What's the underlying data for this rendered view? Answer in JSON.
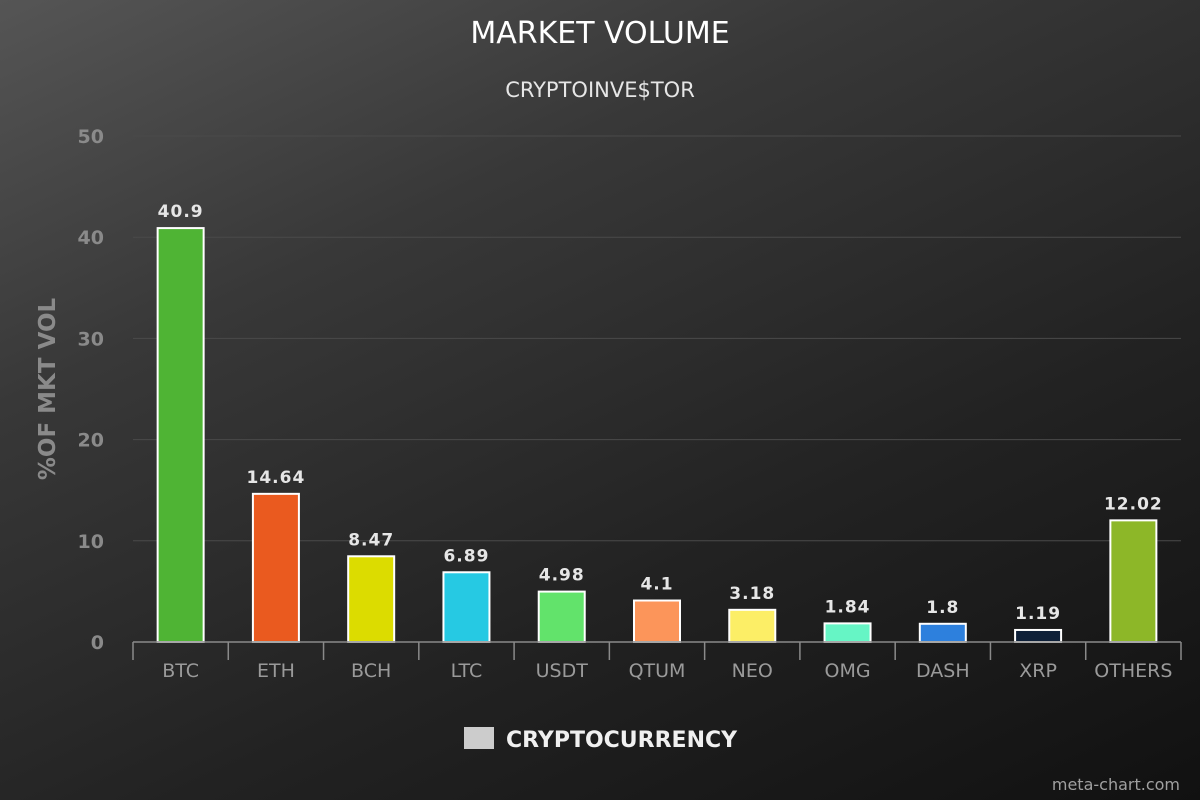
{
  "chart_data": {
    "type": "bar",
    "title": "MARKET VOLUME",
    "subtitle": "CRYPTOINVE$TOR",
    "xlabel": "",
    "ylabel": "%OF MKT VOL",
    "ylim": [
      0,
      50
    ],
    "yticks": [
      "0",
      "10",
      "20",
      "30",
      "40",
      "50"
    ],
    "grid": true,
    "legend_position": "bottom-center",
    "categories": [
      "BTC",
      "ETH",
      "BCH",
      "LTC",
      "USDT",
      "QTUM",
      "NEO",
      "OMG",
      "DASH",
      "XRP",
      "OTHERS"
    ],
    "values": [
      40.9,
      14.64,
      8.47,
      6.89,
      4.98,
      4.1,
      3.18,
      1.84,
      1.8,
      1.19,
      12.02
    ],
    "value_labels": [
      "40.9",
      "14.64",
      "8.47",
      "6.89",
      "4.98",
      "4.1",
      "3.18",
      "1.84",
      "1.8",
      "1.19",
      "12.02"
    ],
    "colors": [
      "#4fb434",
      "#ea5a1f",
      "#dcdc00",
      "#26c9e3",
      "#62e36b",
      "#fc955a",
      "#fcee66",
      "#66f5c5",
      "#2d80dd",
      "#0e2038",
      "#8db728"
    ],
    "series": [
      {
        "name": "CRYPTOCURRENCY",
        "color": "#cccccc"
      }
    ]
  },
  "credit": "meta-chart.com"
}
